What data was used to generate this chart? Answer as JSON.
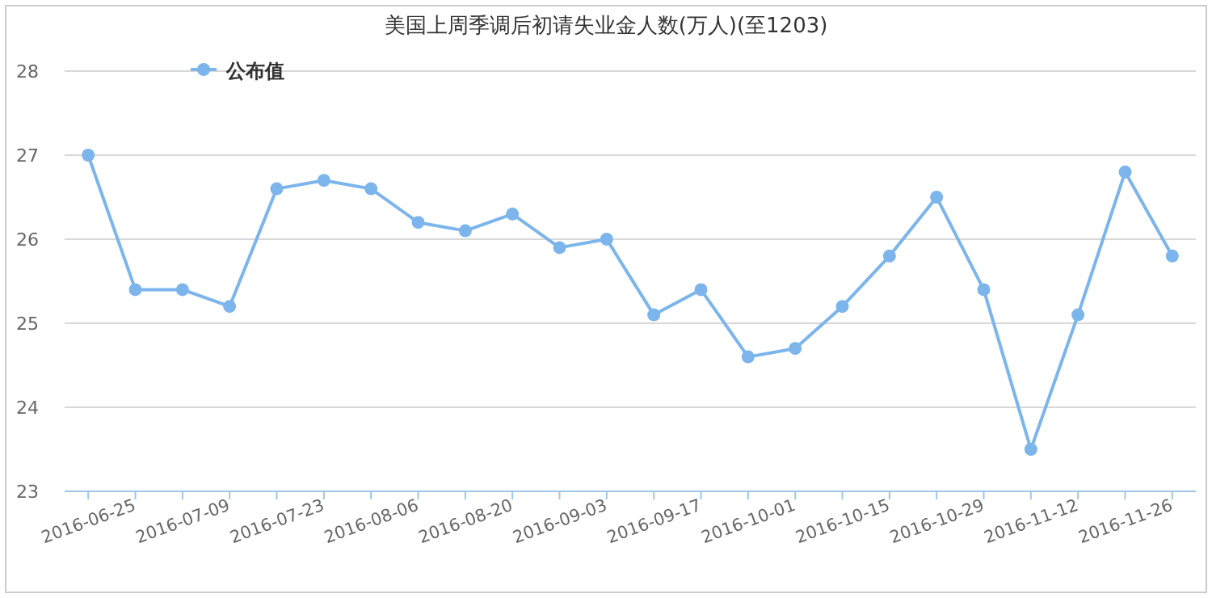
{
  "chart_data": {
    "type": "line",
    "title": "美国上周季调后初请失业金人数(万人)(至1203)",
    "categories": [
      "2016-06-25",
      null,
      "2016-07-09",
      null,
      "2016-07-23",
      null,
      "2016-08-06",
      null,
      "2016-08-20",
      null,
      "2016-09-03",
      null,
      "2016-09-17",
      null,
      "2016-10-01",
      null,
      "2016-10-15",
      null,
      "2016-10-29",
      null,
      "2016-11-12",
      null,
      "2016-11-26",
      null
    ],
    "series": [
      {
        "name": "公布值",
        "color": "#7cb5ec",
        "values": [
          27.0,
          25.4,
          25.4,
          25.2,
          26.6,
          26.7,
          26.6,
          26.2,
          26.1,
          26.3,
          25.9,
          26.0,
          25.1,
          25.4,
          24.6,
          24.7,
          25.2,
          25.8,
          26.5,
          25.4,
          23.5,
          25.1,
          26.8,
          25.8
        ]
      }
    ],
    "ylim": [
      23,
      28
    ],
    "yticks": [
      23,
      24,
      25,
      26,
      27,
      28
    ],
    "grid": "y",
    "legend": "top left",
    "marker": "circle",
    "line_style": "solid"
  }
}
